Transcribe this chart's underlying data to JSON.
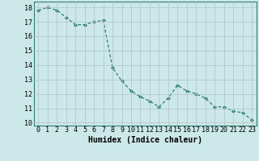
{
  "x": [
    0,
    1,
    2,
    3,
    4,
    5,
    6,
    7,
    8,
    9,
    10,
    11,
    12,
    13,
    14,
    15,
    16,
    17,
    18,
    19,
    20,
    21,
    22,
    23
  ],
  "y": [
    17.8,
    18.0,
    17.8,
    17.3,
    16.8,
    16.8,
    17.0,
    17.1,
    13.8,
    12.9,
    12.2,
    11.8,
    11.5,
    11.1,
    11.7,
    12.6,
    12.2,
    12.0,
    11.7,
    11.1,
    11.1,
    10.8,
    10.7,
    10.2
  ],
  "line_color": "#2e7d6e",
  "marker": "D",
  "marker_size": 2.0,
  "bg_color": "#cce8e8",
  "grid_color": "#b0c4c4",
  "xlabel": "Humidex (Indice chaleur)",
  "xlim": [
    -0.5,
    23.5
  ],
  "ylim": [
    9.8,
    18.4
  ],
  "yticks": [
    10,
    11,
    12,
    13,
    14,
    15,
    16,
    17,
    18
  ],
  "xticks": [
    0,
    1,
    2,
    3,
    4,
    5,
    6,
    7,
    8,
    9,
    10,
    11,
    12,
    13,
    14,
    15,
    16,
    17,
    18,
    19,
    20,
    21,
    22,
    23
  ],
  "xlabel_fontsize": 7,
  "tick_fontsize": 6,
  "linewidth": 0.9
}
